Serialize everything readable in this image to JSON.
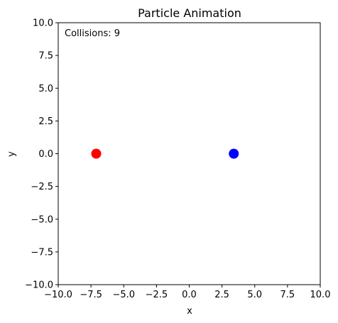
{
  "chart_data": {
    "type": "scatter",
    "title": "Particle Animation",
    "xlabel": "x",
    "ylabel": "y",
    "xlim": [
      -10.0,
      10.0
    ],
    "ylim": [
      -10.0,
      10.0
    ],
    "xticks": [
      -10.0,
      -7.5,
      -5.0,
      -2.5,
      0.0,
      2.5,
      5.0,
      7.5,
      10.0
    ],
    "yticks": [
      -10.0,
      -7.5,
      -5.0,
      -2.5,
      0.0,
      2.5,
      5.0,
      7.5,
      10.0
    ],
    "xtick_labels": [
      "−10.0",
      "−7.5",
      "−5.0",
      "−2.5",
      "0.0",
      "2.5",
      "5.0",
      "7.5",
      "10.0"
    ],
    "ytick_labels": [
      "−10.0",
      "−7.5",
      "−5.0",
      "−2.5",
      "0.0",
      "2.5",
      "5.0",
      "7.5",
      "10.0"
    ],
    "grid": false,
    "annotation": "Collisions: 9",
    "points": [
      {
        "x": -7.1,
        "y": 0.0,
        "color": "#ff0000"
      },
      {
        "x": 3.4,
        "y": 0.0,
        "color": "#0000ff"
      }
    ]
  }
}
